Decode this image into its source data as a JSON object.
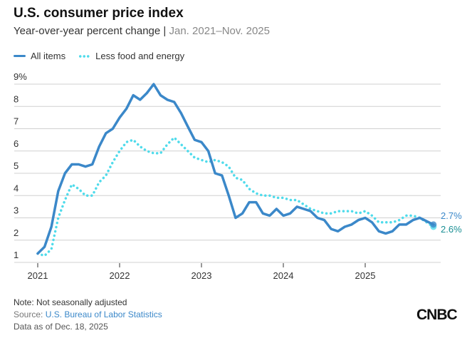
{
  "chart_data": {
    "type": "line",
    "title": "U.S. consumer price index",
    "subtitle": "Year-over-year percent change",
    "subtitle_range": "Jan. 2021–Nov. 2025",
    "ylim": [
      1,
      9
    ],
    "yticks": [
      "1",
      "2",
      "3",
      "4",
      "5",
      "6",
      "7",
      "8",
      "9%"
    ],
    "xticks": [
      "2021",
      "2022",
      "2023",
      "2024",
      "2025"
    ],
    "grid": true,
    "legend": "top-left",
    "start": "2021-01",
    "series": [
      {
        "name": "All items",
        "color": "#3b88c9",
        "style": "solid",
        "end_label": "2.7%",
        "values": [
          1.4,
          1.7,
          2.6,
          4.2,
          5.0,
          5.4,
          5.4,
          5.3,
          5.4,
          6.2,
          6.8,
          7.0,
          7.5,
          7.9,
          8.5,
          8.3,
          8.6,
          9.0,
          8.5,
          8.3,
          8.2,
          7.7,
          7.1,
          6.5,
          6.4,
          6.0,
          5.0,
          4.9,
          4.0,
          3.0,
          3.2,
          3.7,
          3.7,
          3.2,
          3.1,
          3.4,
          3.1,
          3.2,
          3.5,
          3.4,
          3.3,
          3.0,
          2.9,
          2.5,
          2.4,
          2.6,
          2.7,
          2.9,
          3.0,
          2.8,
          2.4,
          2.3,
          2.4,
          2.7,
          2.7,
          2.9,
          3.0,
          null,
          2.7
        ]
      },
      {
        "name": "Less food and energy",
        "color": "#4fdbeb",
        "style": "dotted",
        "end_label": "2.6%",
        "values": [
          1.4,
          1.3,
          1.6,
          3.0,
          3.8,
          4.5,
          4.3,
          4.0,
          4.0,
          4.6,
          4.9,
          5.5,
          6.0,
          6.4,
          6.5,
          6.2,
          6.0,
          5.9,
          5.9,
          6.3,
          6.6,
          6.3,
          6.0,
          5.7,
          5.6,
          5.5,
          5.6,
          5.5,
          5.3,
          4.8,
          4.7,
          4.3,
          4.1,
          4.0,
          4.0,
          3.9,
          3.9,
          3.8,
          3.8,
          3.6,
          3.4,
          3.3,
          3.2,
          3.2,
          3.3,
          3.3,
          3.3,
          3.2,
          3.3,
          3.1,
          2.8,
          2.8,
          2.8,
          2.9,
          3.1,
          3.1,
          3.0,
          null,
          2.6
        ]
      }
    ],
    "end_label_colors": [
      "#3b88c9",
      "#1a8f94"
    ]
  },
  "notes": {
    "note": "Note: Not seasonally adjusted",
    "source_prefix": "Source: ",
    "source": "U.S. Bureau of Labor Statistics",
    "asof": "Data as of Dec. 18, 2025"
  },
  "logo": "CNBC"
}
